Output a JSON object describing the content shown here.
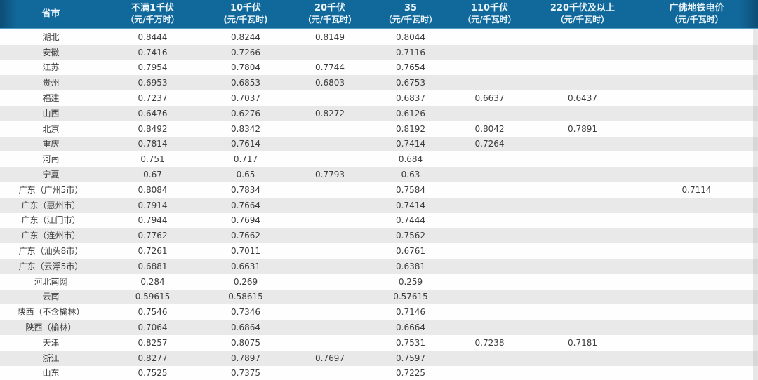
{
  "colors": {
    "header_bg": "#11689b",
    "header_edge": "#0c4d75",
    "header_text": "#e9f4fb",
    "header_border_bottom": "#4d9ec4",
    "row_alt_bg": "#e9e9e9",
    "row_bg": "#fefefe",
    "cell_text": "#3d3d3d"
  },
  "table": {
    "columns": [
      {
        "title": "省市",
        "unit": ""
      },
      {
        "title": "不满1千伏",
        "unit": "（元/千万时）"
      },
      {
        "title": "10千伏",
        "unit": "(元/千瓦时)"
      },
      {
        "title": "20千伏",
        "unit": "（元/千瓦时）"
      },
      {
        "title": "35",
        "unit": "（元/千瓦时）"
      },
      {
        "title": "110千伏",
        "unit": "（元/千瓦时）"
      },
      {
        "title": "220千伏及以上",
        "unit": "（元/千瓦时）"
      },
      {
        "title": "广佛地铁电价",
        "unit": "（元/千瓦时）"
      }
    ]
  },
  "chart_data": {
    "type": "table",
    "title": "",
    "columns": [
      "省市",
      "不满1千伏（元/千万时）",
      "10千伏(元/千瓦时)",
      "20千伏（元/千瓦时）",
      "35（元/千瓦时）",
      "110千伏（元/千瓦时）",
      "220千伏及以上（元/千瓦时）",
      "广佛地铁电价（元/千瓦时）"
    ],
    "rows": [
      [
        "湖北",
        0.8444,
        0.8244,
        0.8149,
        0.8044,
        null,
        null,
        null
      ],
      [
        "安徽",
        0.7416,
        0.7266,
        null,
        0.7116,
        null,
        null,
        null
      ],
      [
        "江苏",
        0.7954,
        0.7804,
        0.7744,
        0.7654,
        null,
        null,
        null
      ],
      [
        "贵州",
        0.6953,
        0.6853,
        0.6803,
        0.6753,
        null,
        null,
        null
      ],
      [
        "福建",
        0.7237,
        0.7037,
        null,
        0.6837,
        0.6637,
        0.6437,
        null
      ],
      [
        "山西",
        0.6476,
        0.6276,
        0.8272,
        0.6126,
        null,
        null,
        null
      ],
      [
        "北京",
        0.8492,
        0.8342,
        null,
        0.8192,
        0.8042,
        0.7891,
        null
      ],
      [
        "重庆",
        0.7814,
        0.7614,
        null,
        0.7414,
        0.7264,
        null,
        null
      ],
      [
        "河南",
        0.751,
        0.717,
        null,
        0.684,
        null,
        null,
        null
      ],
      [
        "宁夏",
        0.67,
        0.65,
        0.7793,
        0.63,
        null,
        null,
        null
      ],
      [
        "广东（广州5市）",
        0.8084,
        0.7834,
        null,
        0.7584,
        null,
        null,
        0.7114
      ],
      [
        "广东（惠州市）",
        0.7914,
        0.7664,
        null,
        0.7414,
        null,
        null,
        null
      ],
      [
        "广东（江门市）",
        0.7944,
        0.7694,
        null,
        0.7444,
        null,
        null,
        null
      ],
      [
        "广东（连州市）",
        0.7762,
        0.7662,
        null,
        0.7562,
        null,
        null,
        null
      ],
      [
        "广东（汕头8市）",
        0.7261,
        0.7011,
        null,
        0.6761,
        null,
        null,
        null
      ],
      [
        "广东（云浮5市）",
        0.6881,
        0.6631,
        null,
        0.6381,
        null,
        null,
        null
      ],
      [
        "河北南网",
        0.284,
        0.269,
        null,
        0.259,
        null,
        null,
        null
      ],
      [
        "云南",
        0.59615,
        0.58615,
        null,
        0.57615,
        null,
        null,
        null
      ],
      [
        "陕西（不含榆林）",
        0.7546,
        0.7346,
        null,
        0.7146,
        null,
        null,
        null
      ],
      [
        "陕西（榆林）",
        0.7064,
        0.6864,
        null,
        0.6664,
        null,
        null,
        null
      ],
      [
        "天津",
        0.8257,
        0.8075,
        null,
        0.7531,
        0.7238,
        0.7181,
        null
      ],
      [
        "浙江",
        0.8277,
        0.7897,
        0.7697,
        0.7597,
        null,
        null,
        null
      ],
      [
        "山东",
        0.7525,
        0.7375,
        null,
        0.7225,
        null,
        null,
        null
      ]
    ]
  }
}
